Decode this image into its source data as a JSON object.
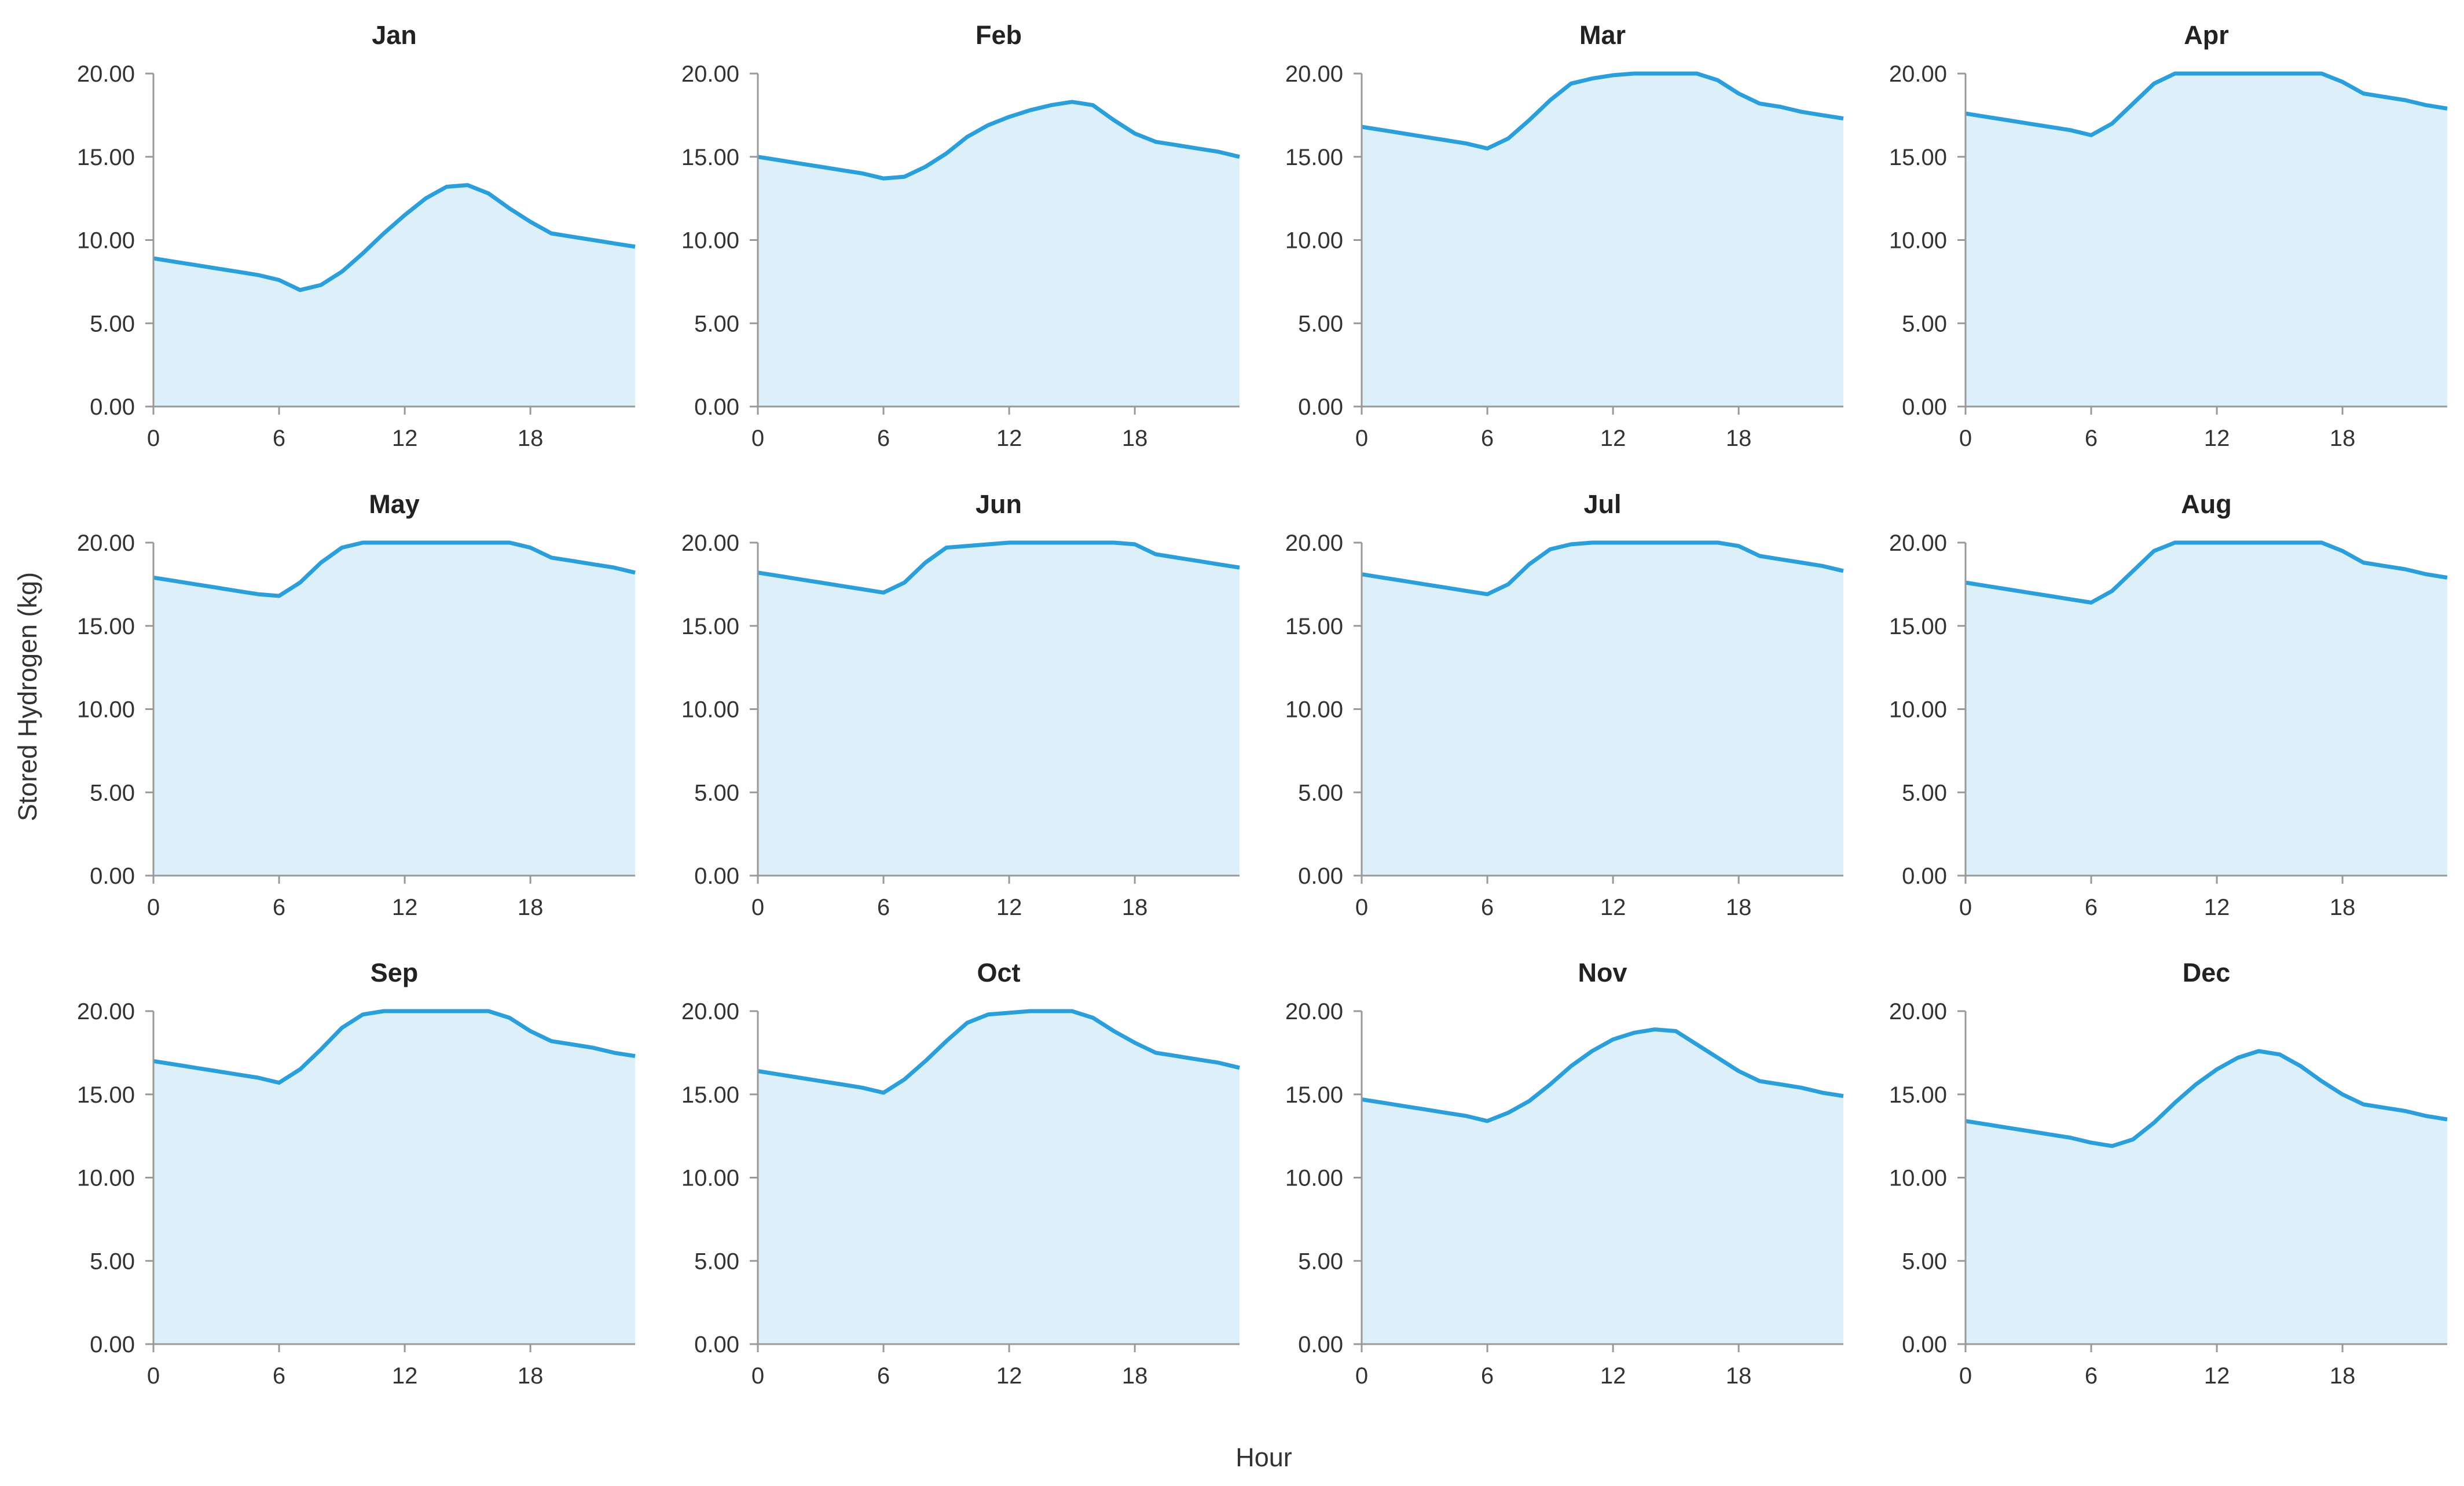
{
  "chart_data": {
    "type": "area",
    "layout": "small-multiples-3x4",
    "xlabel": "Hour",
    "ylabel": "Stored Hydrogen (kg)",
    "x_ticks": [
      0,
      6,
      12,
      18
    ],
    "y_ticks": [
      0,
      5,
      10,
      15,
      20
    ],
    "y_tick_labels": [
      "0.00",
      "5.00",
      "10.00",
      "15.00",
      "20.00"
    ],
    "xlim": [
      0,
      23
    ],
    "ylim": [
      0,
      20
    ],
    "grid": false,
    "colors": {
      "line": "#2b9fdb",
      "fill": "#ddf0f9",
      "axis": "#999999",
      "text": "#333333"
    },
    "hours": [
      0,
      1,
      2,
      3,
      4,
      5,
      6,
      7,
      8,
      9,
      10,
      11,
      12,
      13,
      14,
      15,
      16,
      17,
      18,
      19,
      20,
      21,
      22,
      23
    ],
    "panels": [
      {
        "title": "Jan",
        "values": [
          8.9,
          8.7,
          8.5,
          8.3,
          8.1,
          7.9,
          7.6,
          7.0,
          7.3,
          8.1,
          9.2,
          10.4,
          11.5,
          12.5,
          13.2,
          13.3,
          12.8,
          11.9,
          11.1,
          10.4,
          10.2,
          10.0,
          9.8,
          9.6
        ]
      },
      {
        "title": "Feb",
        "values": [
          15.0,
          14.8,
          14.6,
          14.4,
          14.2,
          14.0,
          13.7,
          13.8,
          14.4,
          15.2,
          16.2,
          16.9,
          17.4,
          17.8,
          18.1,
          18.3,
          18.1,
          17.2,
          16.4,
          15.9,
          15.7,
          15.5,
          15.3,
          15.0
        ]
      },
      {
        "title": "Mar",
        "values": [
          16.8,
          16.6,
          16.4,
          16.2,
          16.0,
          15.8,
          15.5,
          16.1,
          17.2,
          18.4,
          19.4,
          19.7,
          19.9,
          20.0,
          20.0,
          20.0,
          20.0,
          19.6,
          18.8,
          18.2,
          18.0,
          17.7,
          17.5,
          17.3
        ]
      },
      {
        "title": "Apr",
        "values": [
          17.6,
          17.4,
          17.2,
          17.0,
          16.8,
          16.6,
          16.3,
          17.0,
          18.2,
          19.4,
          20.0,
          20.0,
          20.0,
          20.0,
          20.0,
          20.0,
          20.0,
          20.0,
          19.5,
          18.8,
          18.6,
          18.4,
          18.1,
          17.9
        ]
      },
      {
        "title": "May",
        "values": [
          17.9,
          17.7,
          17.5,
          17.3,
          17.1,
          16.9,
          16.8,
          17.6,
          18.8,
          19.7,
          20.0,
          20.0,
          20.0,
          20.0,
          20.0,
          20.0,
          20.0,
          20.0,
          19.7,
          19.1,
          18.9,
          18.7,
          18.5,
          18.2
        ]
      },
      {
        "title": "Jun",
        "values": [
          18.2,
          18.0,
          17.8,
          17.6,
          17.4,
          17.2,
          17.0,
          17.6,
          18.8,
          19.7,
          19.8,
          19.9,
          20.0,
          20.0,
          20.0,
          20.0,
          20.0,
          20.0,
          19.9,
          19.3,
          19.1,
          18.9,
          18.7,
          18.5
        ]
      },
      {
        "title": "Jul",
        "values": [
          18.1,
          17.9,
          17.7,
          17.5,
          17.3,
          17.1,
          16.9,
          17.5,
          18.7,
          19.6,
          19.9,
          20.0,
          20.0,
          20.0,
          20.0,
          20.0,
          20.0,
          20.0,
          19.8,
          19.2,
          19.0,
          18.8,
          18.6,
          18.3
        ]
      },
      {
        "title": "Aug",
        "values": [
          17.6,
          17.4,
          17.2,
          17.0,
          16.8,
          16.6,
          16.4,
          17.1,
          18.3,
          19.5,
          20.0,
          20.0,
          20.0,
          20.0,
          20.0,
          20.0,
          20.0,
          20.0,
          19.5,
          18.8,
          18.6,
          18.4,
          18.1,
          17.9
        ]
      },
      {
        "title": "Sep",
        "values": [
          17.0,
          16.8,
          16.6,
          16.4,
          16.2,
          16.0,
          15.7,
          16.5,
          17.7,
          19.0,
          19.8,
          20.0,
          20.0,
          20.0,
          20.0,
          20.0,
          20.0,
          19.6,
          18.8,
          18.2,
          18.0,
          17.8,
          17.5,
          17.3
        ]
      },
      {
        "title": "Oct",
        "values": [
          16.4,
          16.2,
          16.0,
          15.8,
          15.6,
          15.4,
          15.1,
          15.9,
          17.0,
          18.2,
          19.3,
          19.8,
          19.9,
          20.0,
          20.0,
          20.0,
          19.6,
          18.8,
          18.1,
          17.5,
          17.3,
          17.1,
          16.9,
          16.6
        ]
      },
      {
        "title": "Nov",
        "values": [
          14.7,
          14.5,
          14.3,
          14.1,
          13.9,
          13.7,
          13.4,
          13.9,
          14.6,
          15.6,
          16.7,
          17.6,
          18.3,
          18.7,
          18.9,
          18.8,
          18.0,
          17.2,
          16.4,
          15.8,
          15.6,
          15.4,
          15.1,
          14.9
        ]
      },
      {
        "title": "Dec",
        "values": [
          13.4,
          13.2,
          13.0,
          12.8,
          12.6,
          12.4,
          12.1,
          11.9,
          12.3,
          13.3,
          14.5,
          15.6,
          16.5,
          17.2,
          17.6,
          17.4,
          16.7,
          15.8,
          15.0,
          14.4,
          14.2,
          14.0,
          13.7,
          13.5
        ]
      }
    ]
  }
}
